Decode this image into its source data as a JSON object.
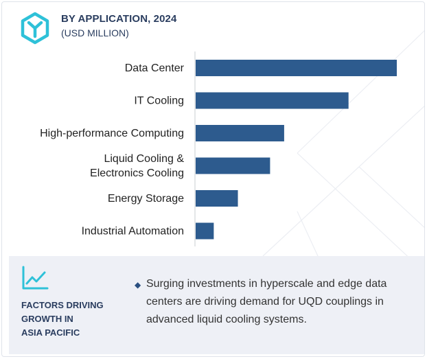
{
  "header": {
    "title": "BY APPLICATION, 2024",
    "subtitle": "(USD MILLION)",
    "logo_icon": "hexagon-y-logo-icon"
  },
  "colors": {
    "bar": "#2d5b8e",
    "title": "#2a3d5f",
    "logo": "#2ec1d8",
    "panel_bg": "#eef0f6"
  },
  "chart_data": {
    "type": "bar",
    "orientation": "horizontal",
    "title": "BY APPLICATION, 2024",
    "unit": "(USD MILLION)",
    "categories": [
      "Data Center",
      "IT Cooling",
      "High-performance Computing",
      "Liquid Cooling &\nElectronics Cooling",
      "Energy Storage",
      "Industrial Automation"
    ],
    "values": [
      100,
      76,
      44,
      37,
      21,
      9
    ],
    "xlim": [
      0,
      100
    ],
    "grid": false,
    "value_labels": false,
    "axis_ticks": false
  },
  "factors": {
    "icon": "trend-line-chart-icon",
    "title": "FACTORS DRIVING\nGROWTH IN\nASIA PACIFIC",
    "bullets": [
      "Surging investments in hyperscale and edge data centers are driving demand for UQD couplings in advanced liquid cooling systems."
    ]
  }
}
